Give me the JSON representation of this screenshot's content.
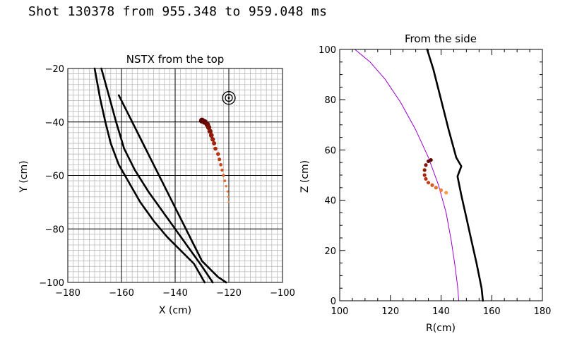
{
  "title": "Shot 130378 from 955.348 to 959.048 ms",
  "colors": {
    "grid_minor": "#bbbbbb",
    "grid_major": "#000000",
    "wall": "#000000",
    "separatrix": "#9900cc",
    "trail_dark": "#5a0000",
    "trail_mid": "#b83010",
    "trail_light": "#ff9944"
  },
  "chart_data": [
    {
      "type": "line",
      "title": "NSTX from the top",
      "xlabel": "X (cm)",
      "ylabel": "Y (cm)",
      "xlim": [
        -180,
        -100
      ],
      "ylim": [
        -100,
        -20
      ],
      "xticks": [
        -180,
        -160,
        -140,
        -120,
        -100
      ],
      "yticks": [
        -100,
        -80,
        -60,
        -40,
        -20
      ],
      "grid": true,
      "series": [
        {
          "role": "wall-outer",
          "x": [
            -167.5,
            -165,
            -162,
            -159,
            -155,
            -150,
            -145,
            -140,
            -135,
            -130,
            -126
          ],
          "y": [
            -20,
            -29,
            -40,
            -50,
            -58,
            -66,
            -73,
            -80,
            -87,
            -94,
            -100
          ]
        },
        {
          "role": "wall-inner",
          "x": [
            -161,
            -157,
            -153,
            -149,
            -145,
            -141,
            -137,
            -133,
            -130,
            -127,
            -124,
            -121
          ],
          "y": [
            -30,
            -38,
            -46,
            -54,
            -62,
            -70,
            -78,
            -86,
            -92,
            -95,
            -98,
            -100
          ]
        },
        {
          "role": "wall-right",
          "x": [
            -170,
            -168,
            -166,
            -164,
            -161,
            -157,
            -153,
            -148,
            -143,
            -138,
            -133,
            -129
          ],
          "y": [
            -20,
            -31,
            -40,
            -48,
            -56,
            -63,
            -70,
            -77,
            -83,
            -88,
            -93,
            -100
          ]
        },
        {
          "role": "trajectory",
          "x": [
            -130,
            -129,
            -128,
            -127.5,
            -127,
            -126.5,
            -126,
            -125.5,
            -125,
            -124,
            -123.5,
            -123,
            -122.5,
            -122,
            -121.5,
            -121,
            -120.5,
            -120.3,
            -120.2
          ],
          "y": [
            -39.5,
            -40,
            -41,
            -42,
            -43.5,
            -45,
            -46.5,
            -48,
            -50,
            -52,
            -54,
            -56,
            -58,
            -60,
            -62,
            -64,
            -66,
            -68,
            -70
          ]
        }
      ],
      "annotation": {
        "x": -120,
        "y": -31,
        "symbol": "concentric-circles"
      }
    },
    {
      "type": "line",
      "title": "From the side",
      "xlabel": "R(cm)",
      "ylabel": "Z (cm)",
      "xlim": [
        100,
        180
      ],
      "ylim": [
        0,
        100
      ],
      "xticks": [
        100,
        120,
        140,
        160,
        180
      ],
      "yticks": [
        0,
        20,
        40,
        60,
        80,
        100
      ],
      "grid": false,
      "series": [
        {
          "role": "wall",
          "x": [
            134.5,
            137,
            140,
            143,
            146,
            148,
            146.5,
            148,
            150,
            152,
            154,
            155,
            156,
            156.3,
            156.5
          ],
          "y": [
            100,
            92,
            80,
            68,
            57,
            53.5,
            49.5,
            42,
            33,
            24,
            15,
            10,
            5,
            2,
            0
          ]
        },
        {
          "role": "separatrix",
          "x": [
            106,
            112,
            118,
            124,
            130,
            135,
            139,
            142,
            144,
            145.5,
            146.5,
            147
          ],
          "y": [
            100,
            95,
            88,
            79,
            68,
            57,
            46,
            35,
            24,
            14,
            6,
            0
          ]
        },
        {
          "role": "trajectory",
          "x": [
            136,
            135,
            134,
            133.5,
            133.5,
            134,
            135,
            136.5,
            138,
            140,
            142
          ],
          "y": [
            56,
            55.5,
            54,
            52,
            50,
            48.5,
            47,
            46,
            45,
            44,
            43
          ]
        }
      ]
    }
  ]
}
